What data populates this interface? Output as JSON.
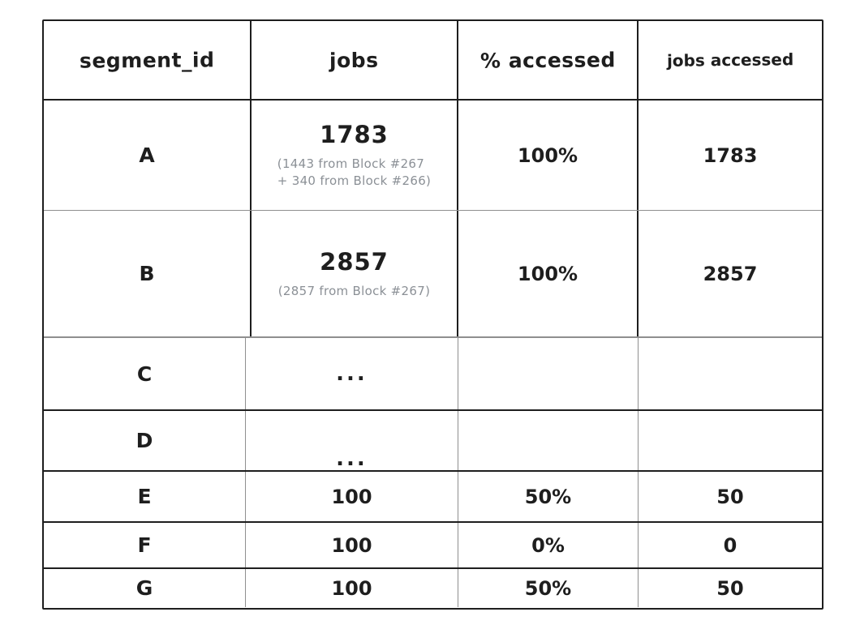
{
  "table": {
    "columns": [
      "segment_id",
      "jobs",
      "% accessed",
      "jobs accessed"
    ],
    "rows": [
      {
        "segment_id": "A",
        "jobs": "1783",
        "jobs_note": "(1443 from Block #267\n+ 340 from Block #266)",
        "pct_accessed": "100%",
        "jobs_accessed": "1783"
      },
      {
        "segment_id": "B",
        "jobs": "2857",
        "jobs_note": "(2857 from Block #267)",
        "pct_accessed": "100%",
        "jobs_accessed": "2857"
      },
      {
        "segment_id": "C",
        "jobs": "...",
        "pct_accessed": "",
        "jobs_accessed": ""
      },
      {
        "segment_id": "D",
        "jobs": "...",
        "pct_accessed": "",
        "jobs_accessed": ""
      },
      {
        "segment_id": "E",
        "jobs": "100",
        "pct_accessed": "50%",
        "jobs_accessed": "50"
      },
      {
        "segment_id": "F",
        "jobs": "100",
        "pct_accessed": "0%",
        "jobs_accessed": "0"
      },
      {
        "segment_id": "G",
        "jobs": "100",
        "pct_accessed": "50%",
        "jobs_accessed": "50"
      }
    ]
  },
  "colors": {
    "ink": "#1e1e1e",
    "muted_text": "#8b9096",
    "line_gray": "#8f8f8f",
    "background": "#ffffff"
  }
}
